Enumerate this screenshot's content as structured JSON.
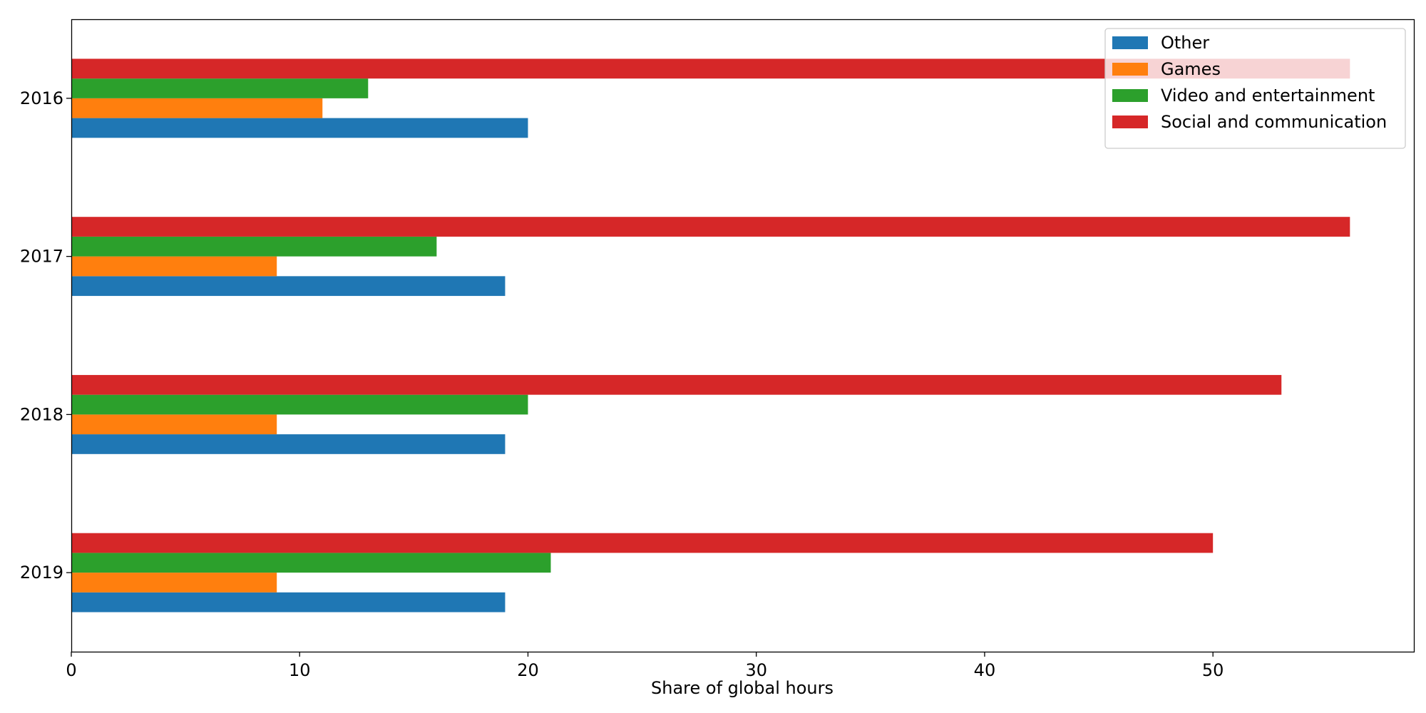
{
  "chart_data": {
    "type": "bar",
    "orientation": "horizontal",
    "categories": [
      "2016",
      "2017",
      "2018",
      "2019"
    ],
    "series": [
      {
        "name": "Other",
        "color": "#1f77b4",
        "values": [
          20,
          19,
          19,
          19
        ]
      },
      {
        "name": "Games",
        "color": "#ff7f0e",
        "values": [
          11,
          9,
          9,
          9
        ]
      },
      {
        "name": "Video and entertainment",
        "color": "#2ca02c",
        "values": [
          13,
          16,
          20,
          21
        ]
      },
      {
        "name": "Social and communication",
        "color": "#d62728",
        "values": [
          56,
          56,
          53,
          50
        ]
      }
    ],
    "title": "",
    "xlabel": "Share of global hours",
    "ylabel": "",
    "xlim": [
      0,
      58.8
    ],
    "xticks": [
      0,
      10,
      20,
      30,
      40,
      50
    ],
    "grid": false,
    "legend_position": "top-right"
  }
}
